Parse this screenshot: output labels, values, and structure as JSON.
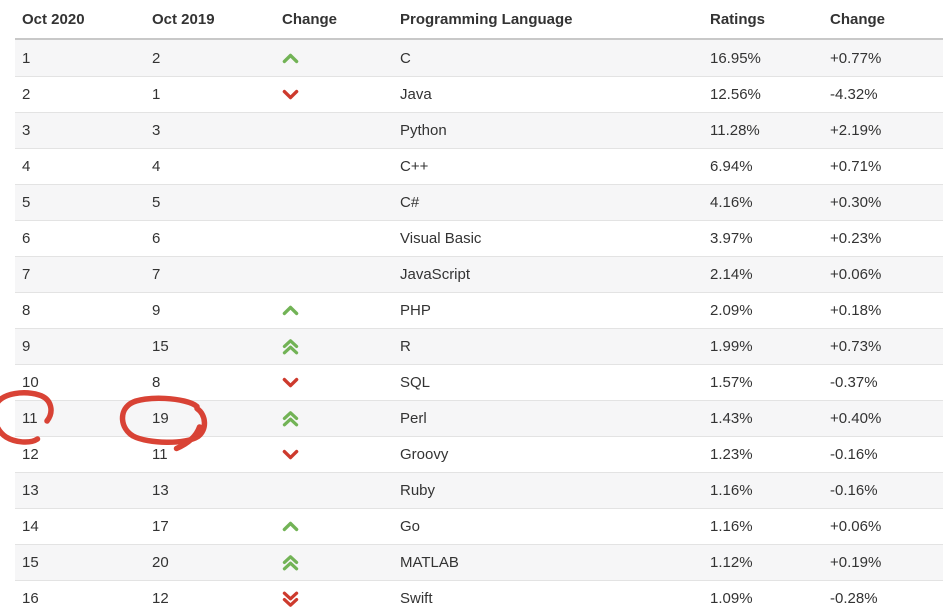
{
  "table": {
    "columns": [
      {
        "label": "Oct 2020"
      },
      {
        "label": "Oct 2019"
      },
      {
        "label": "Change"
      },
      {
        "label": "Programming Language"
      },
      {
        "label": "Ratings"
      },
      {
        "label": "Change"
      }
    ],
    "rows": [
      {
        "rank_now": "1",
        "rank_prev": "2",
        "change": "up",
        "language": "C",
        "ratings": "16.95%",
        "change_pct": "+0.77%"
      },
      {
        "rank_now": "2",
        "rank_prev": "1",
        "change": "down",
        "language": "Java",
        "ratings": "12.56%",
        "change_pct": "-4.32%"
      },
      {
        "rank_now": "3",
        "rank_prev": "3",
        "change": "none",
        "language": "Python",
        "ratings": "11.28%",
        "change_pct": "+2.19%"
      },
      {
        "rank_now": "4",
        "rank_prev": "4",
        "change": "none",
        "language": "C++",
        "ratings": "6.94%",
        "change_pct": "+0.71%"
      },
      {
        "rank_now": "5",
        "rank_prev": "5",
        "change": "none",
        "language": "C#",
        "ratings": "4.16%",
        "change_pct": "+0.30%"
      },
      {
        "rank_now": "6",
        "rank_prev": "6",
        "change": "none",
        "language": "Visual Basic",
        "ratings": "3.97%",
        "change_pct": "+0.23%"
      },
      {
        "rank_now": "7",
        "rank_prev": "7",
        "change": "none",
        "language": "JavaScript",
        "ratings": "2.14%",
        "change_pct": "+0.06%"
      },
      {
        "rank_now": "8",
        "rank_prev": "9",
        "change": "up",
        "language": "PHP",
        "ratings": "2.09%",
        "change_pct": "+0.18%"
      },
      {
        "rank_now": "9",
        "rank_prev": "15",
        "change": "up2",
        "language": "R",
        "ratings": "1.99%",
        "change_pct": "+0.73%"
      },
      {
        "rank_now": "10",
        "rank_prev": "8",
        "change": "down",
        "language": "SQL",
        "ratings": "1.57%",
        "change_pct": "-0.37%"
      },
      {
        "rank_now": "11",
        "rank_prev": "19",
        "change": "up2",
        "language": "Perl",
        "ratings": "1.43%",
        "change_pct": "+0.40%",
        "annotated": true
      },
      {
        "rank_now": "12",
        "rank_prev": "11",
        "change": "down",
        "language": "Groovy",
        "ratings": "1.23%",
        "change_pct": "-0.16%"
      },
      {
        "rank_now": "13",
        "rank_prev": "13",
        "change": "none",
        "language": "Ruby",
        "ratings": "1.16%",
        "change_pct": "-0.16%"
      },
      {
        "rank_now": "14",
        "rank_prev": "17",
        "change": "up",
        "language": "Go",
        "ratings": "1.16%",
        "change_pct": "+0.06%"
      },
      {
        "rank_now": "15",
        "rank_prev": "20",
        "change": "up2",
        "language": "MATLAB",
        "ratings": "1.12%",
        "change_pct": "+0.19%"
      },
      {
        "rank_now": "16",
        "rank_prev": "12",
        "change": "down2",
        "language": "Swift",
        "ratings": "1.09%",
        "change_pct": "-0.28%"
      }
    ]
  },
  "icons": {
    "up": "chevron-up-icon",
    "up2": "chevron-double-up-icon",
    "down": "chevron-down-icon",
    "down2": "chevron-double-down-icon"
  },
  "colors": {
    "up_arrow": "#72b356",
    "down_arrow": "#cd3a2d",
    "annotation_red": "#d7392b",
    "row_stripe": "#f6f6f7",
    "row_border": "#e3e3e3",
    "header_border": "#c8c8c8",
    "text": "#333333"
  },
  "annotation": {
    "description": "hand-drawn red marker circles around the Perl row ranks 11 and 19"
  }
}
